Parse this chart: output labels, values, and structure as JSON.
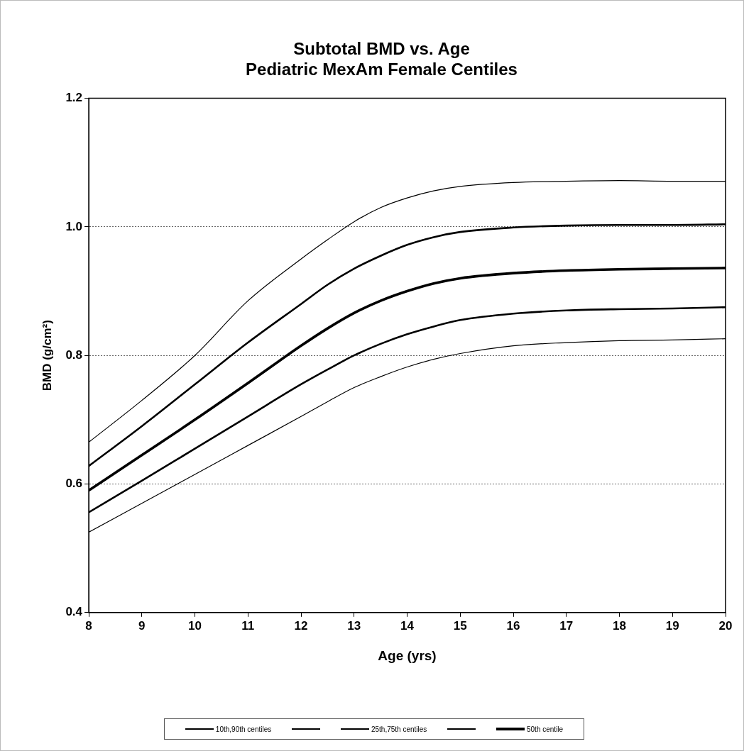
{
  "chart_data": {
    "type": "line",
    "title": [
      "Subtotal BMD vs. Age",
      "Pediatric MexAm Female Centiles"
    ],
    "xlabel": "Age (yrs)",
    "ylabel": "BMD (g/cm²)",
    "x": [
      8,
      9,
      10,
      11,
      12,
      12.5,
      13,
      13.5,
      14,
      14.5,
      15,
      16,
      17,
      18,
      19,
      20
    ],
    "series": [
      {
        "name": "10th,90th centiles",
        "color": "#000000",
        "values": [
          0.525,
          0.57,
          0.615,
          0.66,
          0.705,
          0.728,
          0.75,
          0.767,
          0.782,
          0.794,
          0.803,
          0.815,
          0.82,
          0.823,
          0.824,
          0.826
        ]
      },
      {
        "color": "#000000",
        "values": [
          0.665,
          0.73,
          0.8,
          0.885,
          0.95,
          0.98,
          1.008,
          1.03,
          1.045,
          1.056,
          1.063,
          1.069,
          1.071,
          1.072,
          1.071,
          1.071
        ]
      },
      {
        "name": "25th,75th centiles",
        "color": "#000000",
        "values": [
          0.556,
          0.605,
          0.655,
          0.705,
          0.755,
          0.778,
          0.8,
          0.818,
          0.833,
          0.845,
          0.855,
          0.865,
          0.87,
          0.872,
          0.873,
          0.875
        ]
      },
      {
        "color": "#000000",
        "values": [
          0.628,
          0.69,
          0.755,
          0.82,
          0.88,
          0.91,
          0.935,
          0.955,
          0.972,
          0.984,
          0.992,
          0.999,
          1.002,
          1.003,
          1.003,
          1.004
        ]
      },
      {
        "name": "50th centile",
        "color": "#000000",
        "values": [
          0.59,
          0.645,
          0.7,
          0.757,
          0.815,
          0.842,
          0.866,
          0.885,
          0.9,
          0.912,
          0.92,
          0.928,
          0.932,
          0.934,
          0.935,
          0.936
        ]
      }
    ],
    "xlim": [
      8,
      20
    ],
    "xticks": [
      8,
      9,
      10,
      11,
      12,
      13,
      14,
      15,
      16,
      17,
      18,
      19,
      20
    ],
    "ylim": [
      0.4,
      1.2
    ],
    "yticks": [
      {
        "value": 0.4,
        "label": "0.4"
      },
      {
        "value": 0.6,
        "label": "0.6"
      },
      {
        "value": 0.8,
        "label": "0.8"
      },
      {
        "value": 1.0,
        "label": "1.0"
      },
      {
        "value": 1.2,
        "label": "1.2"
      }
    ],
    "grid": "y",
    "legend": "bottom",
    "marker": "none",
    "line_style": "solid"
  }
}
